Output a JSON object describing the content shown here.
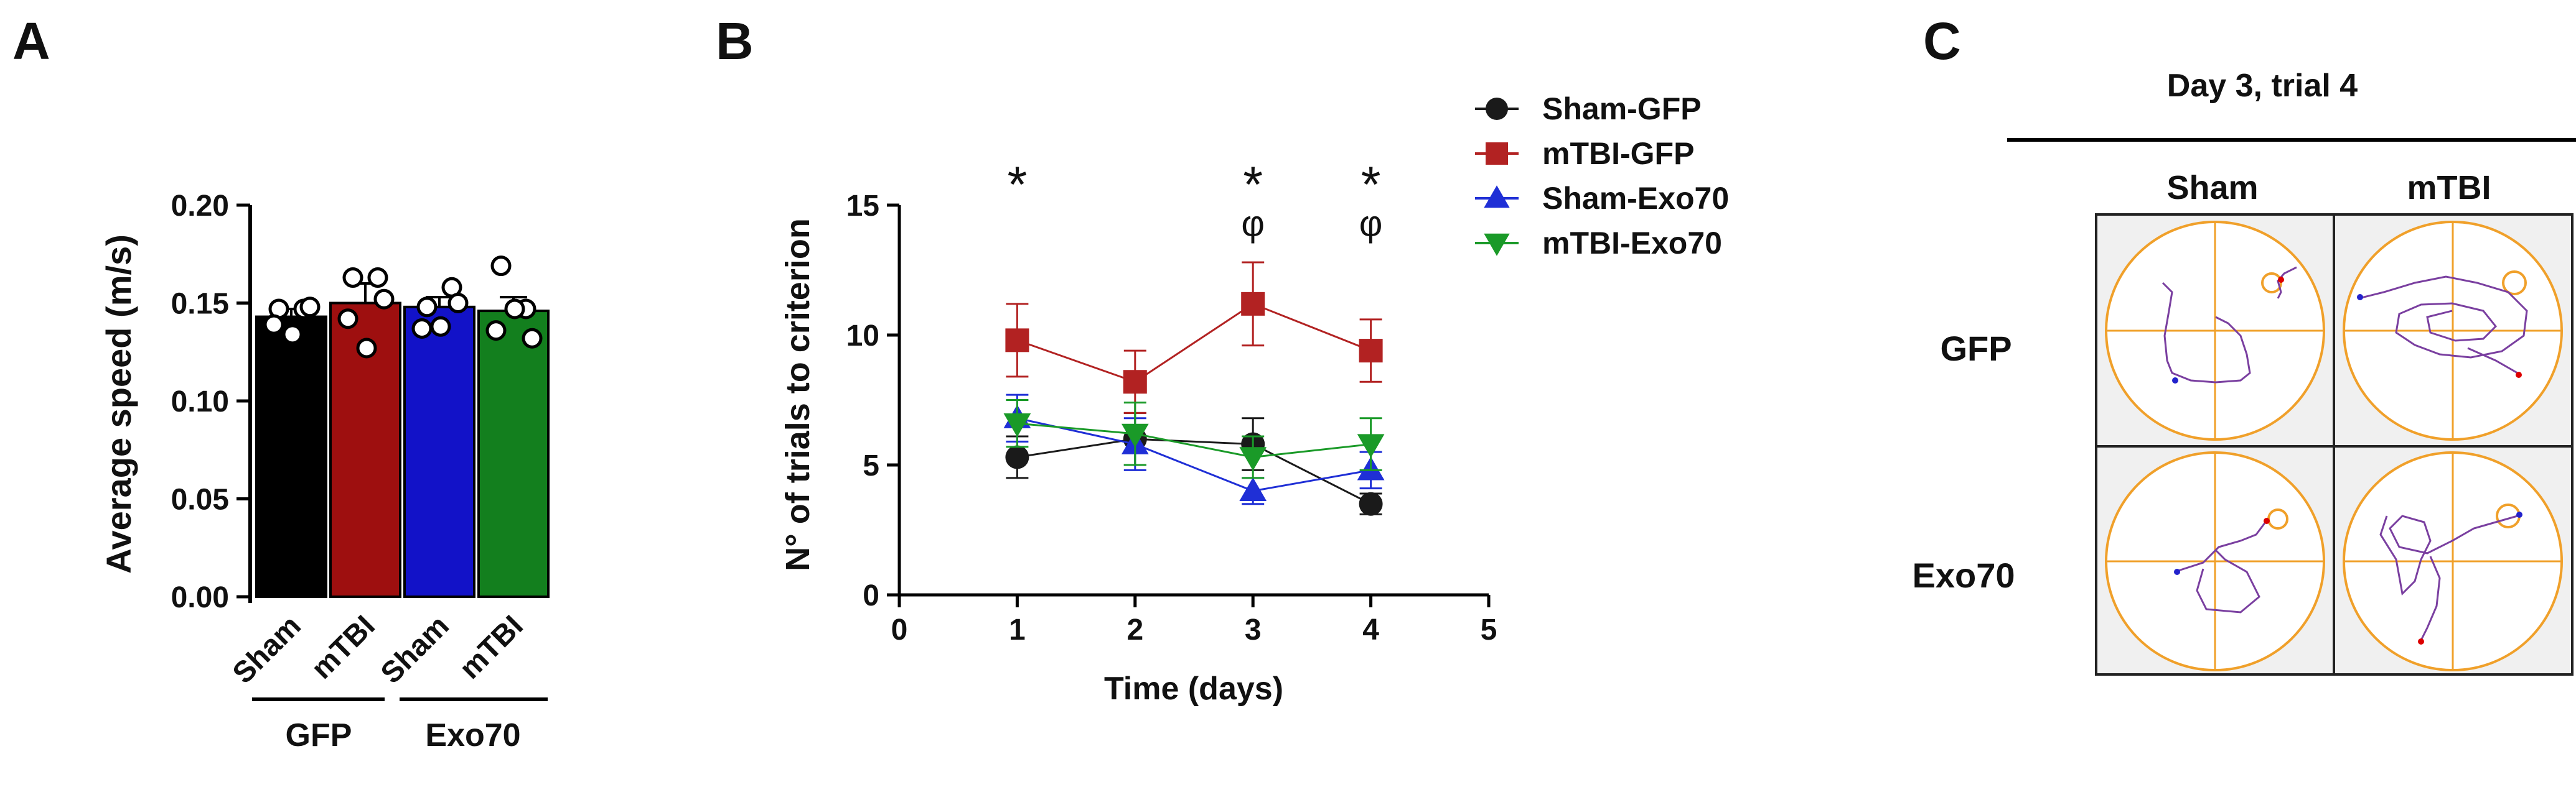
{
  "panel_labels": {
    "a": "A",
    "b": "B",
    "c": "C"
  },
  "chart_data": [
    {
      "type": "bar",
      "panel": "A",
      "title": "",
      "ylabel": "Average speed (m/s)",
      "xlabel": "",
      "ylim": [
        0,
        0.2
      ],
      "yticks": [
        0.0,
        0.05,
        0.1,
        0.15,
        0.2
      ],
      "ytick_labels": [
        "0.00",
        "0.05",
        "0.10",
        "0.15",
        "0.20"
      ],
      "categories": [
        "Sham",
        "mTBI",
        "Sham",
        "mTBI"
      ],
      "groups": [
        "GFP",
        "Exo70"
      ],
      "values": [
        0.143,
        0.15,
        0.148,
        0.146
      ],
      "errors": [
        0.004,
        0.01,
        0.005,
        0.007
      ],
      "colors": [
        "#000000",
        "#9e0f0f",
        "#1212c8",
        "#137f1e"
      ],
      "points": [
        [
          0.147,
          0.147,
          0.139,
          0.134,
          0.148
        ],
        [
          0.163,
          0.163,
          0.142,
          0.127,
          0.152
        ],
        [
          0.148,
          0.158,
          0.137,
          0.138,
          0.15
        ],
        [
          0.169,
          0.147,
          0.136,
          0.147,
          0.132
        ]
      ]
    },
    {
      "type": "line",
      "panel": "B",
      "title": "",
      "xlabel": "Time (days)",
      "ylabel": "N° of trials to criterion",
      "xlim": [
        0,
        5
      ],
      "ylim": [
        0,
        15
      ],
      "xticks": [
        0,
        1,
        2,
        3,
        4,
        5
      ],
      "yticks": [
        0,
        5,
        10,
        15
      ],
      "x": [
        1,
        2,
        3,
        4
      ],
      "series": [
        {
          "name": "Sham-GFP",
          "marker": "circle",
          "color": "#1a1a1a",
          "values": [
            5.3,
            6.0,
            5.8,
            3.5
          ],
          "errors": [
            0.8,
            1.0,
            1.0,
            0.4
          ]
        },
        {
          "name": "mTBI-GFP",
          "marker": "square",
          "color": "#b22222",
          "values": [
            9.8,
            8.2,
            11.2,
            9.4
          ],
          "errors": [
            1.4,
            1.2,
            1.6,
            1.2
          ]
        },
        {
          "name": "Sham-Exo70",
          "marker": "triangle",
          "color": "#1f2fd6",
          "values": [
            6.8,
            5.8,
            4.0,
            4.8
          ],
          "errors": [
            0.9,
            1.0,
            0.5,
            0.7
          ]
        },
        {
          "name": "mTBI-Exo70",
          "marker": "triangle-down",
          "color": "#1a9a28",
          "values": [
            6.6,
            6.2,
            5.3,
            5.8
          ],
          "errors": [
            0.9,
            1.2,
            0.8,
            1.0
          ]
        }
      ],
      "annotations": [
        {
          "x": 1,
          "y": 16.2,
          "text": "*"
        },
        {
          "x": 3,
          "y": 16.2,
          "text": "*"
        },
        {
          "x": 4,
          "y": 16.2,
          "text": "*"
        },
        {
          "x": 3,
          "y": 14.3,
          "text": "φ"
        },
        {
          "x": 4,
          "y": 14.3,
          "text": "φ"
        }
      ]
    }
  ],
  "panel_c": {
    "title": "Day 3, trial 4",
    "col_headers": [
      "Sham",
      "mTBI"
    ],
    "row_headers": [
      "GFP",
      "Exo70"
    ]
  }
}
